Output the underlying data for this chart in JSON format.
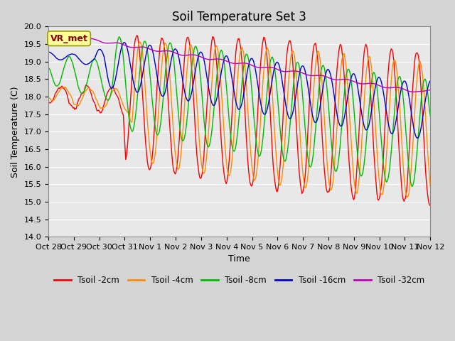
{
  "title": "Soil Temperature Set 3",
  "xlabel": "Time",
  "ylabel": "Soil Temperature (C)",
  "ylim": [
    14.0,
    20.0
  ],
  "yticks": [
    14.0,
    14.5,
    15.0,
    15.5,
    16.0,
    16.5,
    17.0,
    17.5,
    18.0,
    18.5,
    19.0,
    19.5,
    20.0
  ],
  "xtick_labels": [
    "Oct 28",
    "Oct 29",
    "Oct 30",
    "Oct 31",
    "Nov 1",
    "Nov 2",
    "Nov 3",
    "Nov 4",
    "Nov 5",
    "Nov 6",
    "Nov 7",
    "Nov 8",
    "Nov 9",
    "Nov 10",
    "Nov 11",
    "Nov 12"
  ],
  "colors": {
    "Tsoil -2cm": "#ff0000",
    "Tsoil -4cm": "#ff8c00",
    "Tsoil -8cm": "#00bb00",
    "Tsoil -16cm": "#0000cc",
    "Tsoil -32cm": "#bb00bb"
  },
  "legend_labels": [
    "Tsoil -2cm",
    "Tsoil -4cm",
    "Tsoil -8cm",
    "Tsoil -16cm",
    "Tsoil -32cm"
  ],
  "annotation_text": "VR_met",
  "annotation_box_facecolor": "#ffff99",
  "annotation_box_edgecolor": "#999900",
  "fig_facecolor": "#d4d4d4",
  "plot_facecolor": "#e8e8e8",
  "grid_color": "#ffffff",
  "n_points": 480,
  "title_fontsize": 12,
  "label_fontsize": 9,
  "tick_fontsize": 8,
  "linewidth": 1.0
}
